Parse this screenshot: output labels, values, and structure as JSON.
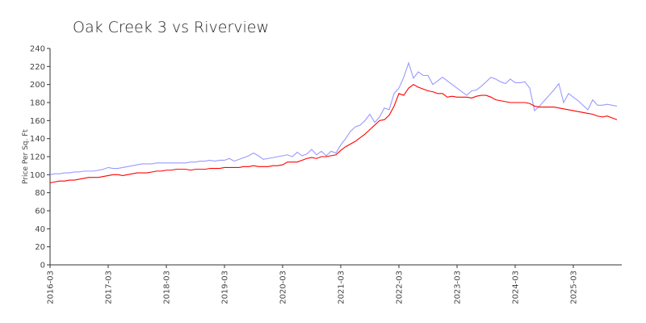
{
  "chart_data": {
    "type": "line",
    "title": "Oak Creek 3 vs Riverview",
    "y_label": "Price Per Sq. Ft",
    "x": [
      "2016-03",
      "2016-04",
      "2016-05",
      "2016-06",
      "2016-07",
      "2016-08",
      "2016-09",
      "2016-10",
      "2016-11",
      "2016-12",
      "2017-01",
      "2017-02",
      "2017-03",
      "2017-04",
      "2017-05",
      "2017-06",
      "2017-07",
      "2017-08",
      "2017-09",
      "2017-10",
      "2017-11",
      "2017-12",
      "2018-01",
      "2018-02",
      "2018-03",
      "2018-04",
      "2018-05",
      "2018-06",
      "2018-07",
      "2018-08",
      "2018-09",
      "2018-10",
      "2018-11",
      "2018-12",
      "2019-01",
      "2019-02",
      "2019-03",
      "2019-04",
      "2019-05",
      "2019-06",
      "2019-07",
      "2019-08",
      "2019-09",
      "2019-10",
      "2019-11",
      "2019-12",
      "2020-01",
      "2020-02",
      "2020-03",
      "2020-04",
      "2020-05",
      "2020-06",
      "2020-07",
      "2020-08",
      "2020-09",
      "2020-10",
      "2020-11",
      "2020-12",
      "2021-01",
      "2021-02",
      "2021-03",
      "2021-04",
      "2021-05",
      "2021-06",
      "2021-07",
      "2021-08",
      "2021-09",
      "2021-10",
      "2021-11",
      "2021-12",
      "2022-01",
      "2022-02",
      "2022-03",
      "2022-04",
      "2022-05",
      "2022-06",
      "2022-07",
      "2022-08",
      "2022-09",
      "2022-10",
      "2022-11",
      "2022-12",
      "2023-01",
      "2023-02",
      "2023-03",
      "2023-04",
      "2023-05",
      "2023-06",
      "2023-07",
      "2023-08",
      "2023-09",
      "2023-10",
      "2023-11",
      "2023-12",
      "2024-01",
      "2024-02",
      "2024-03",
      "2024-04",
      "2024-05",
      "2024-06",
      "2024-07",
      "2024-08",
      "2024-09",
      "2024-10",
      "2024-11",
      "2024-12",
      "2025-01",
      "2025-02",
      "2025-03",
      "2025-04",
      "2025-05",
      "2025-06",
      "2025-07",
      "2025-08",
      "2025-09",
      "2025-10",
      "2025-11",
      "2025-12"
    ],
    "series": [
      {
        "color": "#9999ff",
        "values": [
          100,
          101,
          101,
          102,
          102,
          103,
          103,
          104,
          104,
          104,
          105,
          106,
          108,
          107,
          107,
          108,
          109,
          110,
          111,
          112,
          112,
          112,
          113,
          113,
          113,
          113,
          113,
          113,
          113,
          114,
          114,
          115,
          115,
          116,
          115,
          116,
          116,
          118,
          115,
          117,
          119,
          121,
          124,
          121,
          117,
          118,
          119,
          120,
          121,
          122,
          120,
          125,
          121,
          123,
          128,
          122,
          126,
          121,
          126,
          124,
          133,
          140,
          148,
          153,
          155,
          160,
          167,
          158,
          164,
          174,
          172,
          190,
          196,
          208,
          224,
          207,
          214,
          210,
          210,
          200,
          204,
          208,
          204,
          200,
          196,
          192,
          188,
          193,
          194,
          198,
          203,
          208,
          206,
          203,
          201,
          206,
          202,
          202,
          203,
          196,
          171,
          176,
          182,
          188,
          194,
          201,
          180,
          190,
          186,
          182,
          177,
          172,
          183,
          177,
          177,
          178,
          177,
          176
        ]
      },
      {
        "color": "#ff0000",
        "values": [
          91,
          92,
          93,
          93,
          94,
          94,
          95,
          96,
          97,
          97,
          97,
          98,
          99,
          100,
          100,
          99,
          100,
          101,
          102,
          102,
          102,
          103,
          104,
          104,
          105,
          105,
          106,
          106,
          106,
          105,
          106,
          106,
          106,
          107,
          107,
          107,
          108,
          108,
          108,
          108,
          109,
          109,
          110,
          109,
          109,
          109,
          110,
          110,
          111,
          114,
          114,
          114,
          116,
          118,
          119,
          118,
          120,
          120,
          121,
          122,
          127,
          131,
          134,
          137,
          141,
          145,
          150,
          155,
          160,
          161,
          166,
          176,
          190,
          188,
          196,
          200,
          197,
          195,
          193,
          192,
          190,
          190,
          186,
          187,
          186,
          186,
          186,
          185,
          187,
          188,
          188,
          186,
          183,
          182,
          181,
          180,
          180,
          180,
          180,
          179,
          176,
          175,
          175,
          175,
          175,
          174,
          173,
          172,
          171,
          170,
          169,
          168,
          167,
          165,
          164,
          165,
          163,
          161
        ]
      }
    ],
    "ylim": [
      0,
      240
    ],
    "yticks": [
      0,
      20,
      40,
      60,
      80,
      100,
      120,
      140,
      160,
      180,
      200,
      220,
      240
    ],
    "xticks": [
      "2016-03",
      "2017-03",
      "2018-03",
      "2019-03",
      "2020-03",
      "2021-03",
      "2022-03",
      "2023-03",
      "2024-03",
      "2025-03"
    ]
  }
}
